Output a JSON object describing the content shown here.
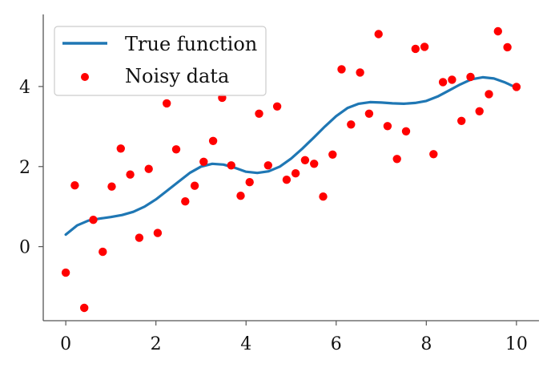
{
  "chart_data": {
    "type": "scatter",
    "xlim": [
      -0.5,
      10.5
    ],
    "ylim": [
      -1.85,
      5.8
    ],
    "xticks": [
      0,
      2,
      4,
      6,
      8,
      10
    ],
    "yticks": [
      0,
      2,
      4
    ],
    "grid": false,
    "legend_position": "top-left",
    "series": [
      {
        "name": "True function",
        "kind": "line",
        "color": "#1f77b4",
        "x": [
          0,
          0.25,
          0.5,
          0.75,
          1.0,
          1.25,
          1.5,
          1.75,
          2.0,
          2.25,
          2.5,
          2.75,
          3.0,
          3.25,
          3.5,
          3.75,
          4.0,
          4.25,
          4.5,
          4.75,
          5.0,
          5.25,
          5.5,
          5.75,
          6.0,
          6.25,
          6.5,
          6.75,
          7.0,
          7.25,
          7.5,
          7.75,
          8.0,
          8.25,
          8.5,
          8.75,
          9.0,
          9.25,
          9.5,
          9.75,
          10.0
        ],
        "y": [
          0.3,
          0.53,
          0.65,
          0.7,
          0.74,
          0.79,
          0.87,
          1.0,
          1.18,
          1.4,
          1.62,
          1.84,
          2.0,
          2.07,
          2.05,
          1.97,
          1.87,
          1.84,
          1.88,
          2.0,
          2.2,
          2.45,
          2.72,
          3.0,
          3.26,
          3.46,
          3.57,
          3.61,
          3.6,
          3.58,
          3.57,
          3.59,
          3.64,
          3.75,
          3.9,
          4.05,
          4.18,
          4.23,
          4.2,
          4.1,
          3.97
        ]
      },
      {
        "name": "Noisy data",
        "kind": "scatter",
        "color": "#ff0000",
        "x": [
          0.0,
          0.2,
          0.41,
          0.61,
          0.82,
          1.02,
          1.22,
          1.43,
          1.63,
          1.84,
          2.04,
          2.24,
          2.45,
          2.65,
          2.86,
          3.06,
          3.27,
          3.47,
          3.67,
          3.88,
          4.08,
          4.29,
          4.49,
          4.69,
          4.9,
          5.1,
          5.31,
          5.51,
          5.71,
          5.92,
          6.12,
          6.33,
          6.53,
          6.73,
          6.94,
          7.14,
          7.35,
          7.55,
          7.76,
          7.96,
          8.16,
          8.37,
          8.57,
          8.78,
          8.98,
          9.18,
          9.39,
          9.59,
          9.8,
          10.0
        ],
        "y": [
          -0.65,
          1.53,
          -1.53,
          0.67,
          -0.13,
          1.5,
          2.45,
          1.8,
          0.22,
          1.94,
          0.34,
          3.58,
          2.43,
          1.13,
          1.52,
          2.12,
          2.64,
          3.72,
          2.03,
          1.27,
          1.61,
          3.32,
          2.03,
          3.5,
          1.67,
          1.83,
          2.16,
          2.07,
          1.25,
          2.3,
          4.43,
          3.05,
          4.35,
          3.32,
          5.31,
          3.01,
          2.19,
          2.88,
          4.94,
          4.99,
          2.31,
          4.11,
          4.17,
          3.14,
          4.24,
          3.38,
          3.81,
          5.38,
          4.98,
          3.99
        ]
      }
    ]
  },
  "legend": {
    "items": [
      {
        "label": "True function",
        "color": "#1f77b4",
        "marker": "line"
      },
      {
        "label": "Noisy data",
        "color": "#ff0000",
        "marker": "dot"
      }
    ]
  },
  "axes": {
    "x_tick_labels": [
      "0",
      "2",
      "4",
      "6",
      "8",
      "10"
    ],
    "y_tick_labels": [
      "0",
      "2",
      "4"
    ]
  }
}
